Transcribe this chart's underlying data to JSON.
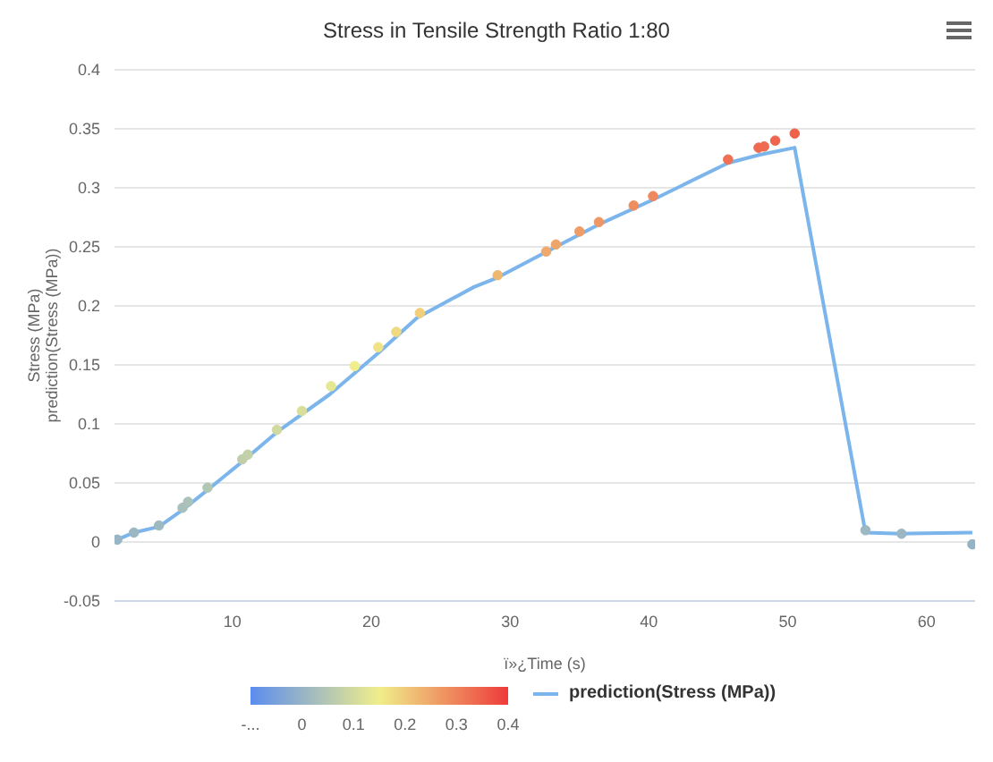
{
  "chart_data": {
    "type": "scatter",
    "title": "Stress in Tensile Strength Ratio 1:80",
    "xlabel": "ï»¿Time (s)",
    "ylabel": "Stress (MPa)\nprediction(Stress (MPa))",
    "xlim": [
      1.5,
      63.5
    ],
    "xticks": [
      10,
      20,
      30,
      40,
      50,
      60
    ],
    "ylim": [
      -0.05,
      0.4
    ],
    "yticks": [
      -0.05,
      0,
      0.05,
      0.1,
      0.15,
      0.2,
      0.25,
      0.3,
      0.35,
      0.4
    ],
    "grid": "y",
    "legend": "bottom",
    "clim": [
      -0.1,
      0.4
    ],
    "cticks": [
      {
        "value": -0.1,
        "label": "-..."
      },
      0,
      0.1,
      0.2,
      0.3,
      0.4
    ],
    "series": [
      {
        "type": "scatter",
        "marker": "circle",
        "x": [
          1.7,
          2.9,
          4.7,
          6.4,
          6.8,
          8.2,
          10.7,
          11.1,
          13.2,
          15.0,
          17.1,
          18.8,
          20.5,
          21.8,
          23.5,
          29.1,
          32.6,
          33.3,
          35.0,
          36.4,
          38.9,
          40.3,
          45.7,
          47.9,
          48.3,
          49.1,
          50.5,
          55.6,
          58.2,
          63.3
        ],
        "values": [
          0.002,
          0.008,
          0.014,
          0.029,
          0.034,
          0.046,
          0.07,
          0.074,
          0.095,
          0.111,
          0.132,
          0.149,
          0.165,
          0.178,
          0.194,
          0.226,
          0.246,
          0.252,
          0.263,
          0.271,
          0.285,
          0.293,
          0.324,
          0.334,
          0.335,
          0.34,
          0.346,
          0.01,
          0.007,
          -0.002
        ],
        "colors": [
          "#98b5c6",
          "#9bb7c3",
          "#9fb9c1",
          "#a8bfbb",
          "#abc1b9",
          "#b2c6b4",
          "#c0cfaa",
          "#c3d1a9",
          "#cfd9a0",
          "#d9df9a",
          "#e5e791",
          "#efee8a",
          "#f0e385",
          "#f0da81",
          "#f0ce7c",
          "#efb872",
          "#efa96c",
          "#efa56a",
          "#ef9d66",
          "#ef9764",
          "#ef8d5f",
          "#ef885d",
          "#ef7153",
          "#ef6a50",
          "#ef6a50",
          "#ee664e",
          "#ee624c",
          "#9db8c3",
          "#9bb7c4",
          "#95b3c7"
        ],
        "cvalues": [
          0.002,
          0.008,
          0.014,
          0.029,
          0.034,
          0.046,
          0.07,
          0.074,
          0.095,
          0.111,
          0.132,
          0.149,
          0.165,
          0.178,
          0.194,
          0.226,
          0.246,
          0.252,
          0.263,
          0.271,
          0.285,
          0.293,
          0.324,
          0.334,
          0.335,
          0.34,
          0.346,
          0.01,
          0.007,
          -0.002
        ]
      },
      {
        "type": "line",
        "name": "prediction(Stress (MPa))",
        "color": "#7cb5ec",
        "marker": "none",
        "x": [
          1.7,
          2.9,
          4.7,
          6.5,
          8.2,
          10.7,
          13.2,
          17.0,
          20.5,
          23.3,
          27.4,
          29.1,
          33.3,
          36.4,
          40.3,
          45.7,
          48.0,
          50.5,
          55.6,
          58.2,
          63.3
        ],
        "values": [
          0.002,
          0.008,
          0.013,
          0.028,
          0.044,
          0.068,
          0.093,
          0.125,
          0.16,
          0.19,
          0.216,
          0.224,
          0.25,
          0.269,
          0.29,
          0.321,
          0.328,
          0.334,
          0.008,
          0.007,
          0.008
        ]
      }
    ]
  }
}
